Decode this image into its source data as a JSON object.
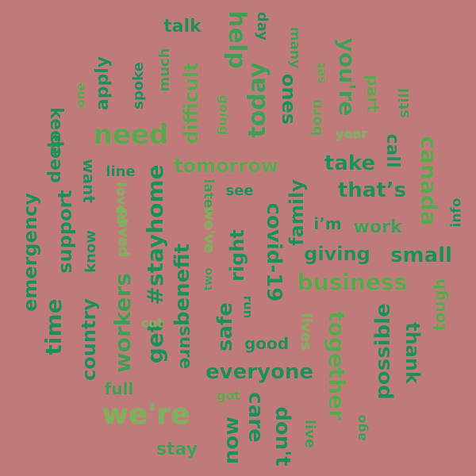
{
  "palette": {
    "background": "#c07a7a",
    "dark_green": "#1f8f5a",
    "green": "#3f9d55",
    "light_green": "#5aa84e",
    "pale_green": "#7ab35a"
  },
  "words": {
    "talk": "talk",
    "day": "day",
    "many": "many",
    "help": "help",
    "youre": "you're",
    "apply": "apply",
    "much": "much",
    "spoke": "spoke",
    "one": "one",
    "difficult": "difficult",
    "today": "today",
    "ones": "ones",
    "going": "going",
    "set": "set",
    "part": "part",
    "born": "born",
    "still": "still",
    "keep": "keep",
    "need": "need",
    "year": "year",
    "call": "call",
    "canada": "canada",
    "deep": "deep",
    "want": "want",
    "tomorrow": "tomorrow",
    "take": "take",
    "line": "line",
    "loved": "loved",
    "later": "later",
    "see": "see",
    "thats": "that’s",
    "emergency": "emergency",
    "support": "support",
    "know": "know",
    "stayhome": "#stayhome",
    "weve": "we've",
    "covid19": "covid-19",
    "family": "family",
    "im": "i’m",
    "work": "work",
    "info": "info",
    "paved": "paved",
    "two": "two",
    "right": "right",
    "giving": "giving",
    "small": "small",
    "time": "time",
    "workers": "workers",
    "benefit": "benefit",
    "business": "business",
    "tough": "tough",
    "country": "country",
    "get": "get",
    "cut": "cut",
    "safe": "safe",
    "run": "run",
    "lives": "lives",
    "together": "together",
    "possible": "possible",
    "sure": "sure",
    "good": "good",
    "thank": "thank",
    "everyone": "everyone",
    "full": "full",
    "got": "got",
    "were": "we're",
    "care": "care",
    "now": "now",
    "dont": "don't",
    "live": "live",
    "ago": "ago",
    "stay": "stay"
  }
}
